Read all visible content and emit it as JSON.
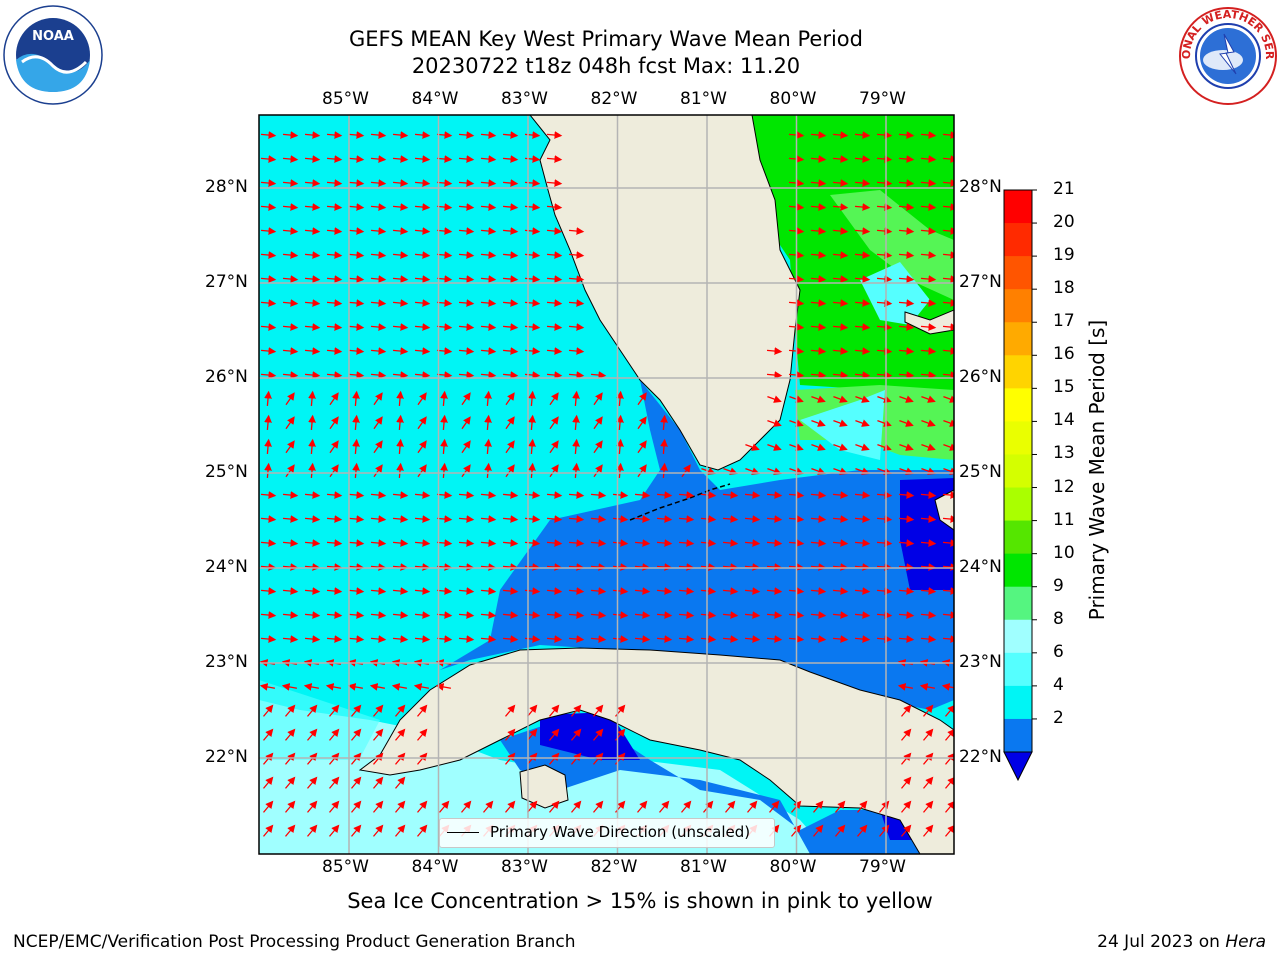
{
  "title": {
    "line1": "GEFS MEAN Key West Primary Wave Mean Period",
    "line2": "20230722 t18z 048h fcst   Max: 11.20"
  },
  "logos": {
    "left": "NOAA",
    "right": "NATIONAL WEATHER SERVICE"
  },
  "map": {
    "lon_labels": [
      "85°W",
      "84°W",
      "83°W",
      "82°W",
      "81°W",
      "80°W",
      "79°W"
    ],
    "lat_labels": [
      "28°N",
      "27°N",
      "26°N",
      "25°N",
      "24°N",
      "23°N",
      "22°N"
    ],
    "legend": "Primary Wave Direction (unscaled)",
    "colors": {
      "land": "#eeecdc",
      "p2_4": "#0a78f0",
      "p4_6": "#00f5f5",
      "p6_8": "#55ffff",
      "p8_9": "#a0ffff",
      "p10_11": "#00e600",
      "p11_12": "#55f555",
      "lt2": "#0000e6",
      "arrow": "#ff0000"
    }
  },
  "colorbar": {
    "label": "Primary Wave Mean Period [s]",
    "ticks": [
      "21",
      "20",
      "19",
      "18",
      "17",
      "16",
      "15",
      "14",
      "13",
      "12",
      "11",
      "10",
      "9",
      "8",
      "6",
      "4",
      "2"
    ],
    "colors": [
      "#ff0000",
      "#ff2a00",
      "#ff5500",
      "#ff8000",
      "#ffaa00",
      "#ffd400",
      "#ffff00",
      "#eaff00",
      "#d4ff00",
      "#aaff00",
      "#55e600",
      "#00e600",
      "#55f580",
      "#a0ffff",
      "#55ffff",
      "#00f5f5",
      "#0a78f0"
    ]
  },
  "footer": {
    "note": "Sea Ice Concentration > 15% is shown in pink to yellow",
    "left": "NCEP/EMC/Verification Post Processing Product Generation Branch",
    "right_date": "24 Jul 2023 on",
    "right_host": "Hera"
  }
}
